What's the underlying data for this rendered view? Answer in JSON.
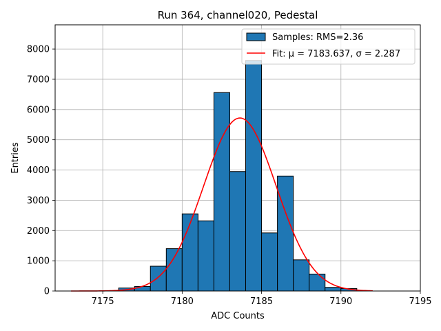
{
  "chart_data": {
    "type": "bar",
    "title": "Run 364, channel020, Pedestal",
    "xlabel": "ADC Counts",
    "ylabel": "Entries",
    "xlim": [
      7172.0,
      7195.0
    ],
    "ylim": [
      0,
      8800
    ],
    "grid": true,
    "bin_width": 1,
    "bins": [
      {
        "x0": 7176,
        "count": 100
      },
      {
        "x0": 7177,
        "count": 150
      },
      {
        "x0": 7178,
        "count": 820
      },
      {
        "x0": 7179,
        "count": 1400
      },
      {
        "x0": 7180,
        "count": 2550
      },
      {
        "x0": 7181,
        "count": 2320
      },
      {
        "x0": 7182,
        "count": 6560
      },
      {
        "x0": 7183,
        "count": 3950
      },
      {
        "x0": 7184,
        "count": 7620
      },
      {
        "x0": 7185,
        "count": 1920
      },
      {
        "x0": 7186,
        "count": 3800
      },
      {
        "x0": 7187,
        "count": 1030
      },
      {
        "x0": 7188,
        "count": 560
      },
      {
        "x0": 7189,
        "count": 120
      },
      {
        "x0": 7190,
        "count": 80
      }
    ],
    "fit": {
      "mu": 7183.637,
      "sigma": 2.287,
      "amplitude": 5720,
      "x_range": [
        7173,
        7192
      ]
    },
    "x_ticks": [
      7175,
      7180,
      7185,
      7190,
      7195
    ],
    "y_ticks": [
      0,
      1000,
      2000,
      3000,
      4000,
      5000,
      6000,
      7000,
      8000
    ],
    "legend": {
      "placement": "top-right",
      "entries": [
        {
          "label": "Samples: RMS=2.36",
          "kind": "patch"
        },
        {
          "label": "Fit: μ = 7183.637, σ = 2.287",
          "kind": "line"
        }
      ]
    },
    "colors": {
      "bar_fill": "#1f77b4",
      "bar_edge": "#000000",
      "fit_line": "#ff0000",
      "grid": "#b0b0b0"
    }
  }
}
